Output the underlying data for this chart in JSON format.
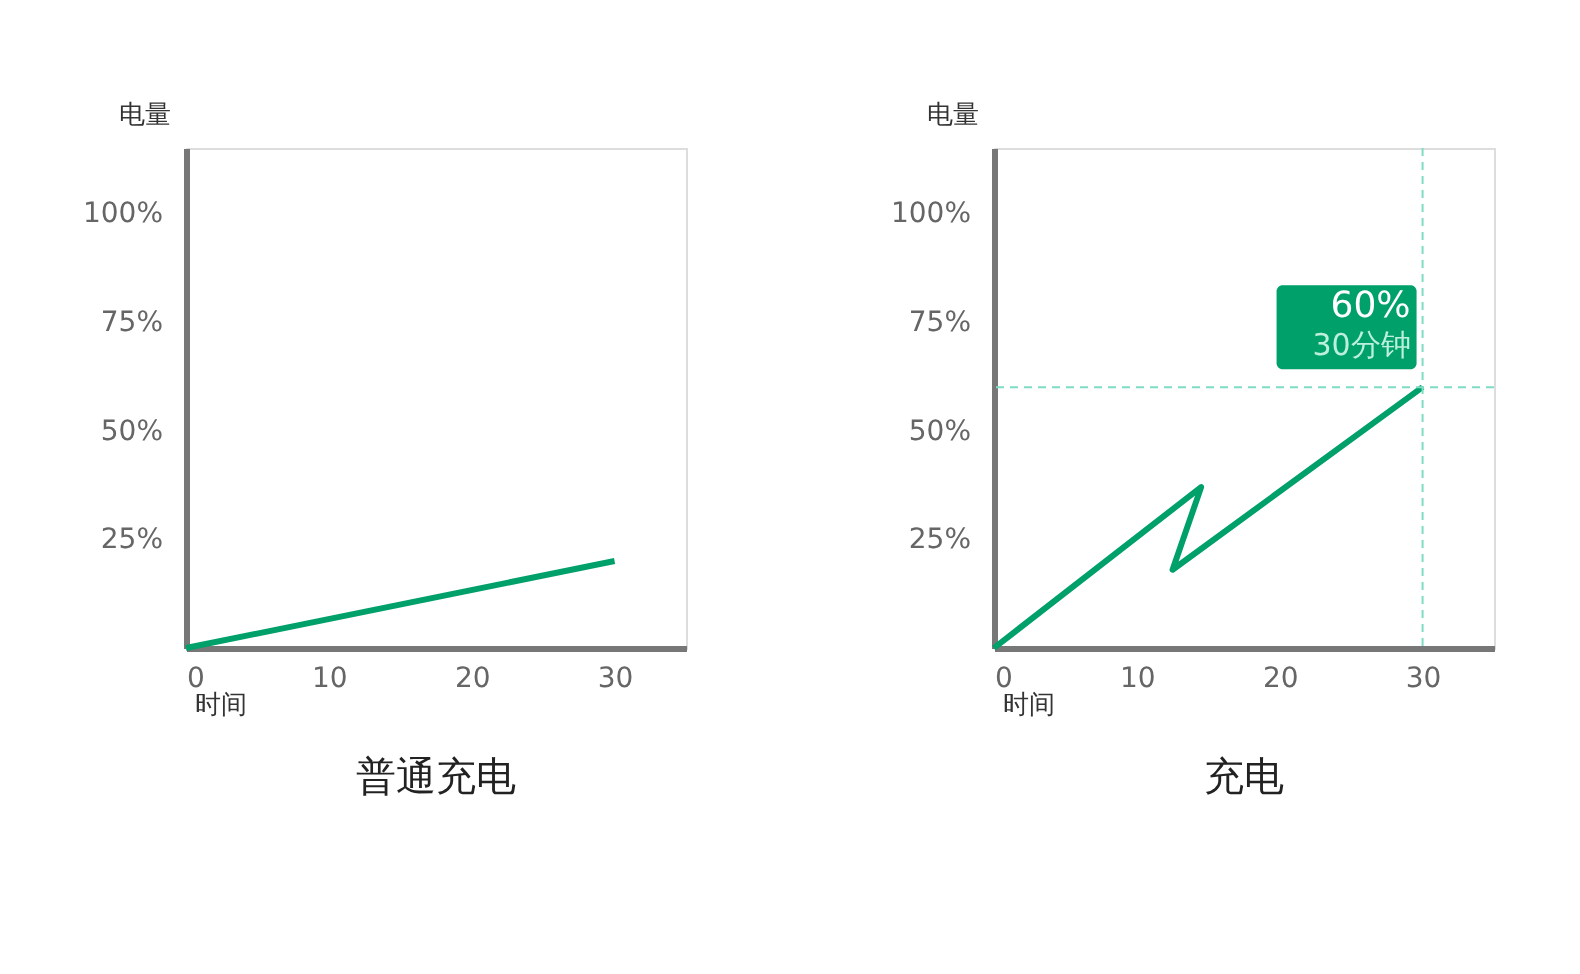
{
  "chart_data": [
    {
      "type": "line",
      "title": "普通充电",
      "xlabel": "时间",
      "ylabel": "电量",
      "x": [
        0,
        30
      ],
      "values": [
        0,
        20
      ],
      "color": "#00a06a",
      "xlim": [
        0,
        35
      ],
      "ylim": [
        0,
        115
      ],
      "xticks": [
        0,
        10,
        20,
        30
      ],
      "yticks": [
        {
          "value": 25,
          "label": "25%"
        },
        {
          "value": 50,
          "label": "50%"
        },
        {
          "value": 75,
          "label": "75%"
        },
        {
          "value": 100,
          "label": "100%"
        }
      ]
    },
    {
      "type": "line",
      "title": "充电",
      "xlabel": "时间",
      "ylabel": "电量",
      "x": [
        0,
        14.5,
        12.5,
        30
      ],
      "values": [
        0,
        37,
        18,
        60
      ],
      "color": "#00a06a",
      "xlim": [
        0,
        35
      ],
      "ylim": [
        0,
        115
      ],
      "xticks": [
        0,
        10,
        20,
        30
      ],
      "yticks": [
        {
          "value": 25,
          "label": "25%"
        },
        {
          "value": 50,
          "label": "50%"
        },
        {
          "value": 75,
          "label": "75%"
        },
        {
          "value": 100,
          "label": "100%"
        }
      ],
      "ref_lines": [
        {
          "axis": "x",
          "value": 30,
          "color": "#7fdcc4",
          "line_style": "dashed"
        },
        {
          "axis": "y",
          "value": 60,
          "color": "#7fdcc4",
          "line_style": "dashed"
        }
      ],
      "annotations": [
        {
          "text": "60%",
          "x": 30,
          "y": 60
        },
        {
          "text": "30分钟",
          "x": 30,
          "y": 60
        }
      ]
    }
  ]
}
